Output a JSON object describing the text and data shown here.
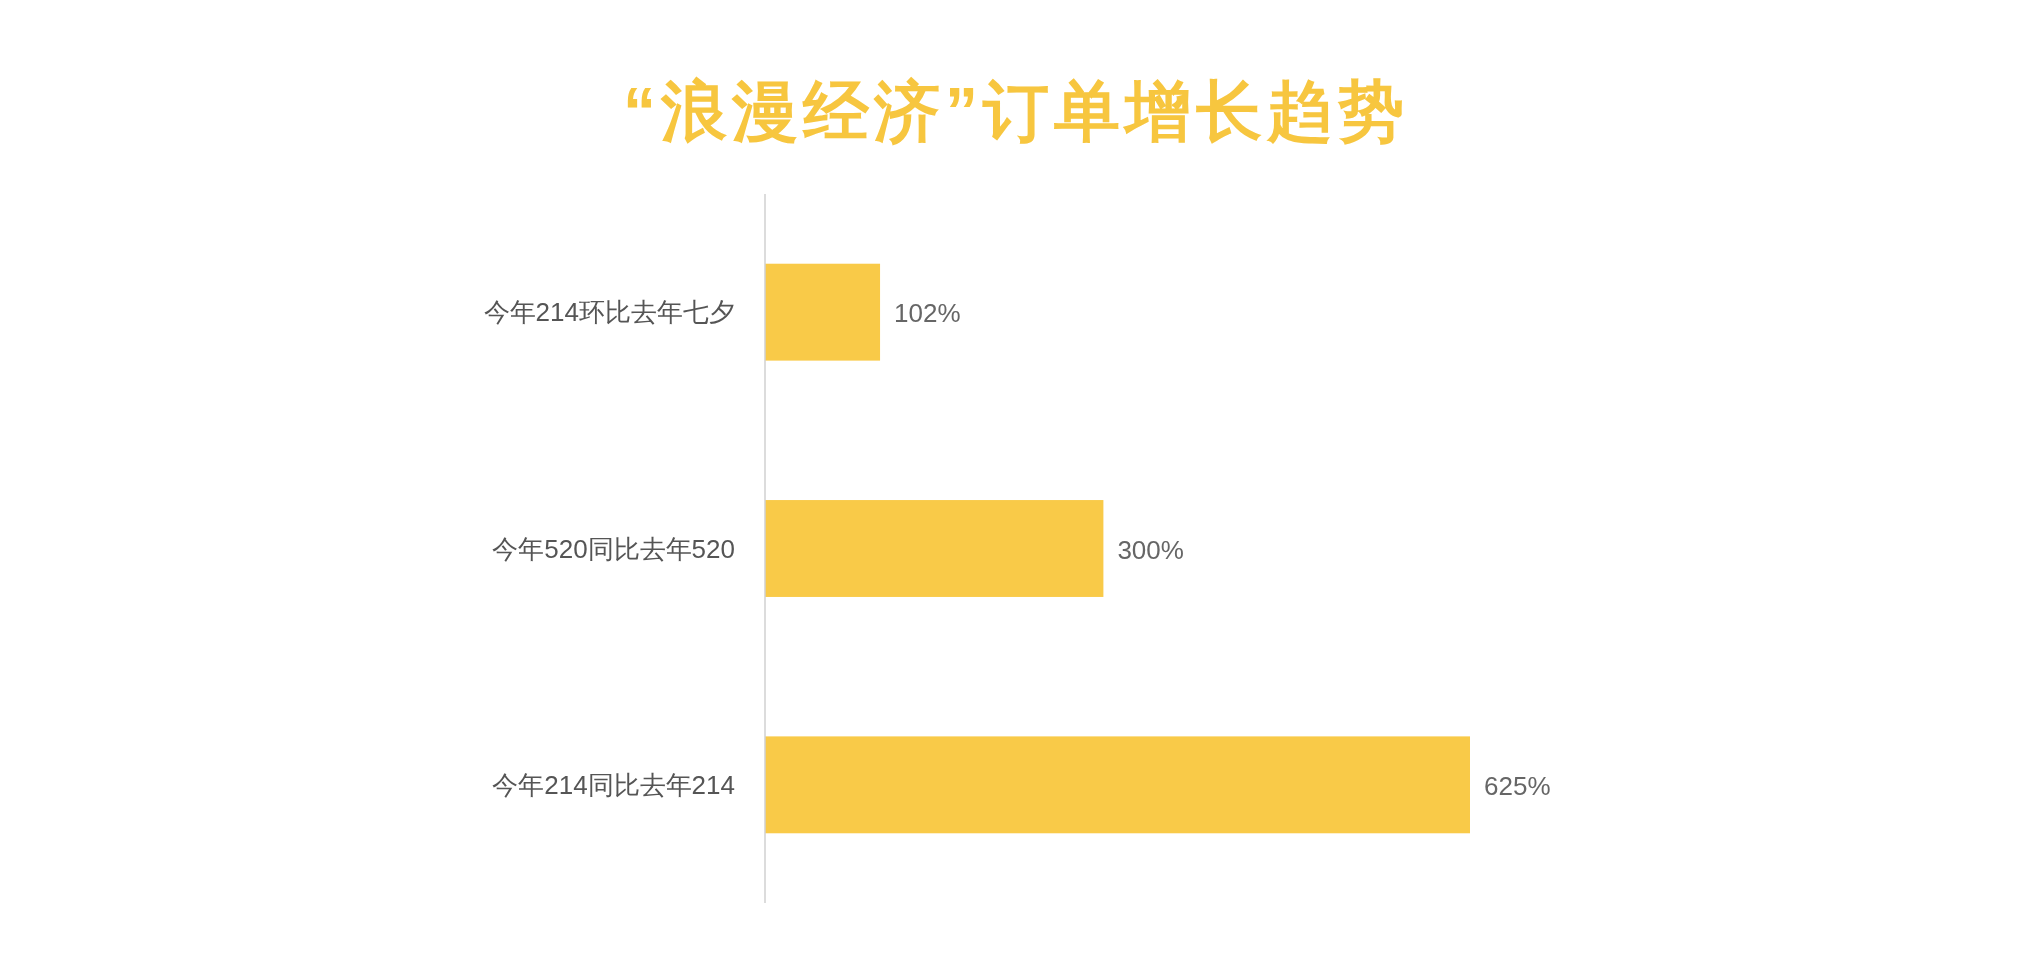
{
  "chart_data": {
    "type": "bar",
    "orientation": "horizontal",
    "title": "“浪漫经济”订单增长趋势",
    "categories": [
      "今年214环比去年七夕",
      "今年520同比去年520",
      "今年214同比去年214"
    ],
    "values": [
      102,
      300,
      625
    ],
    "value_labels": [
      "102%",
      "300%",
      "625%"
    ],
    "color": "#f9ca48"
  }
}
